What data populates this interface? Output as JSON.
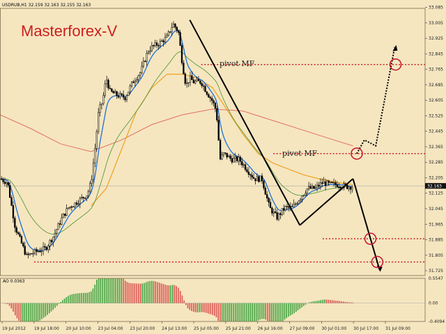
{
  "header": {
    "symbol_line": "USDRUB,H1  32.159 32.163 32.155 32.163"
  },
  "brand": {
    "text": "Masterforex-V"
  },
  "annotations": {
    "pivot_upper": "pivot MF",
    "pivot_lower": "pivot MF"
  },
  "oscillator": {
    "label": "AO 0.0363"
  },
  "colors": {
    "background": "#f5e6c0",
    "candles": "#000000",
    "ema_fast": "#1e6fd9",
    "ma_slow": "#5a9a3a",
    "ma_orange": "#f0a020",
    "ma_red": "#e07060",
    "levels": "#cc1f1f",
    "ao_up": "#3fa33f",
    "ao_down": "#d9534f"
  },
  "chart_data": {
    "type": "candlestick",
    "symbol": "USDRUB",
    "timeframe": "H1",
    "ohlc_header": {
      "open": 32.159,
      "high": 32.163,
      "low": 32.155,
      "close": 32.163
    },
    "ylim": [
      31.7,
      33.08
    ],
    "y_ticks": [
      "33.085",
      "33.005",
      "32.925",
      "32.845",
      "32.765",
      "32.685",
      "32.605",
      "32.525",
      "32.445",
      "32.365",
      "32.285",
      "32.205",
      "32.125",
      "32.045",
      "31.965",
      "31.885",
      "31.805",
      "31.725"
    ],
    "current_price": "32.163",
    "x_ticks": [
      "19 Jul 2012",
      "19 Jul 18:00",
      "20 Jul 10:00",
      "23 Jul 04:00",
      "23 Jul 20:00",
      "24 Jul 13:00",
      "25 Jul 05:00",
      "25 Jul 21:00",
      "26 Jul 16:00",
      "27 Jul 09:00",
      "30 Jul 01:00",
      "30 Jul 17:00",
      "31 Jul 09:00"
    ],
    "price_path": [
      [
        0,
        32.2
      ],
      [
        10,
        32.18
      ],
      [
        20,
        31.95
      ],
      [
        30,
        31.85
      ],
      [
        35,
        31.8
      ],
      [
        45,
        31.82
      ],
      [
        60,
        31.84
      ],
      [
        70,
        31.9
      ],
      [
        82,
        32.0
      ],
      [
        90,
        32.05
      ],
      [
        98,
        32.07
      ],
      [
        108,
        32.1
      ],
      [
        115,
        32.12
      ],
      [
        120,
        32.18
      ],
      [
        125,
        32.35
      ],
      [
        130,
        32.55
      ],
      [
        135,
        32.6
      ],
      [
        140,
        32.72
      ],
      [
        145,
        32.65
      ],
      [
        155,
        32.63
      ],
      [
        165,
        32.62
      ],
      [
        175,
        32.7
      ],
      [
        185,
        32.75
      ],
      [
        195,
        32.86
      ],
      [
        200,
        32.88
      ],
      [
        210,
        32.9
      ],
      [
        220,
        32.93
      ],
      [
        228,
        33.0
      ],
      [
        235,
        32.96
      ],
      [
        240,
        32.8
      ],
      [
        245,
        32.68
      ],
      [
        250,
        32.72
      ],
      [
        255,
        32.7
      ],
      [
        265,
        32.7
      ],
      [
        272,
        32.65
      ],
      [
        280,
        32.6
      ],
      [
        285,
        32.55
      ],
      [
        290,
        32.3
      ],
      [
        295,
        32.33
      ],
      [
        305,
        32.3
      ],
      [
        315,
        32.3
      ],
      [
        325,
        32.25
      ],
      [
        335,
        32.2
      ],
      [
        345,
        32.2
      ],
      [
        355,
        32.05
      ],
      [
        365,
        32.0
      ],
      [
        375,
        32.05
      ],
      [
        385,
        32.05
      ],
      [
        395,
        32.1
      ],
      [
        405,
        32.15
      ],
      [
        415,
        32.15
      ],
      [
        425,
        32.18
      ],
      [
        435,
        32.17
      ],
      [
        445,
        32.17
      ],
      [
        455,
        32.16
      ],
      [
        465,
        32.16
      ]
    ],
    "ma_orange_path": [
      [
        120,
        32.06
      ],
      [
        140,
        32.15
      ],
      [
        160,
        32.35
      ],
      [
        180,
        32.55
      ],
      [
        200,
        32.67
      ],
      [
        220,
        32.74
      ],
      [
        240,
        32.74
      ],
      [
        260,
        32.72
      ],
      [
        280,
        32.67
      ],
      [
        300,
        32.55
      ],
      [
        320,
        32.43
      ],
      [
        340,
        32.33
      ],
      [
        360,
        32.28
      ],
      [
        380,
        32.25
      ],
      [
        400,
        32.22
      ],
      [
        420,
        32.2
      ],
      [
        445,
        32.18
      ],
      [
        465,
        32.17
      ]
    ],
    "ma_red_path": [
      [
        0,
        32.53
      ],
      [
        40,
        32.46
      ],
      [
        80,
        32.38
      ],
      [
        120,
        32.34
      ],
      [
        160,
        32.4
      ],
      [
        200,
        32.48
      ],
      [
        240,
        32.53
      ],
      [
        280,
        32.56
      ],
      [
        320,
        32.55
      ],
      [
        360,
        32.5
      ],
      [
        400,
        32.45
      ],
      [
        440,
        32.4
      ],
      [
        465,
        32.37
      ]
    ],
    "trend_lines": [
      {
        "from": [
          250,
          33.02
        ],
        "to": [
          395,
          31.96
        ]
      },
      {
        "from": [
          395,
          31.96
        ],
        "to": [
          465,
          32.2
        ]
      },
      {
        "from": [
          465,
          32.2
        ],
        "to": [
          500,
          31.73
        ]
      }
    ],
    "levels": [
      {
        "label": "pivot MF",
        "price": 32.79,
        "x_start": 265,
        "x_end": 560
      },
      {
        "label": "pivot MF",
        "price": 32.33,
        "x_start": 360,
        "x_end": 560
      },
      {
        "price": 31.89,
        "x_start": 425,
        "x_end": 560
      },
      {
        "price": 31.77,
        "x_start": 45,
        "x_end": 560
      }
    ],
    "circles": [
      [
        470,
        32.33
      ],
      [
        521,
        32.79
      ],
      [
        488,
        31.89
      ],
      [
        497,
        31.77
      ]
    ],
    "forecast_path": [
      [
        470,
        32.33
      ],
      [
        480,
        32.4
      ],
      [
        495,
        32.37
      ],
      [
        520,
        32.88
      ]
    ],
    "ao": {
      "label": "AO",
      "value": 0.0363,
      "ylim": [
        -0.4094,
        0.5547
      ],
      "y_ticks": [
        "0.5547",
        "0.00",
        "-0.4094"
      ]
    }
  }
}
